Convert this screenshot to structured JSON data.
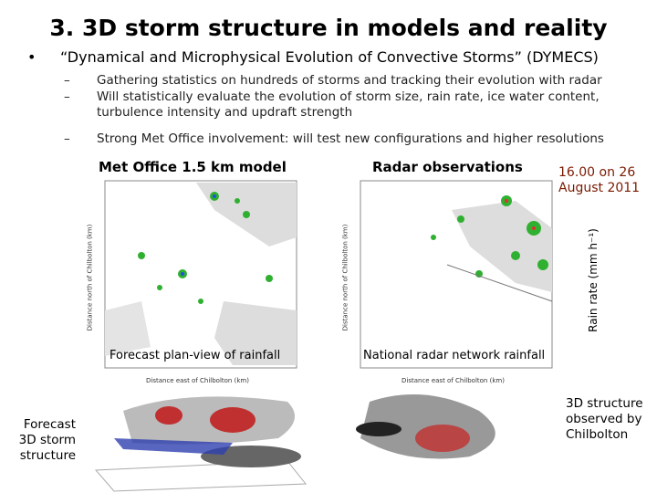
{
  "title": "3. 3D storm structure in models and reality",
  "bullet": "“Dynamical and Microphysical Evolution of Convective Storms” (DYMECS)",
  "sub_bullets": [
    "Gathering statistics on hundreds of storms and tracking their evolution with radar",
    "Will statistically evaluate the evolution of storm size, rain rate, ice water content, turbulence intensity and updraft strength",
    "Strong Met Office involvement: will test new configurations and higher resolutions"
  ],
  "date": "16.00 on 26 August 2011",
  "rain_rate_label": "Rain rate (mm h⁻¹)",
  "panels": [
    {
      "title": "Met Office 1.5 km model",
      "caption": "Forecast plan-view of rainfall",
      "x_label": "Distance east of Chilbolton (km)",
      "y_label": "Distance north of Chilbolton (km)",
      "label_3d": "Forecast 3D storm structure"
    },
    {
      "title": "Radar observations",
      "caption": "National radar network rainfall",
      "x_label": "Distance east of Chilbolton (km)",
      "y_label": "Distance north of Chilbolton (km)",
      "label_3d": "3D structure observed by Chilbolton"
    }
  ]
}
